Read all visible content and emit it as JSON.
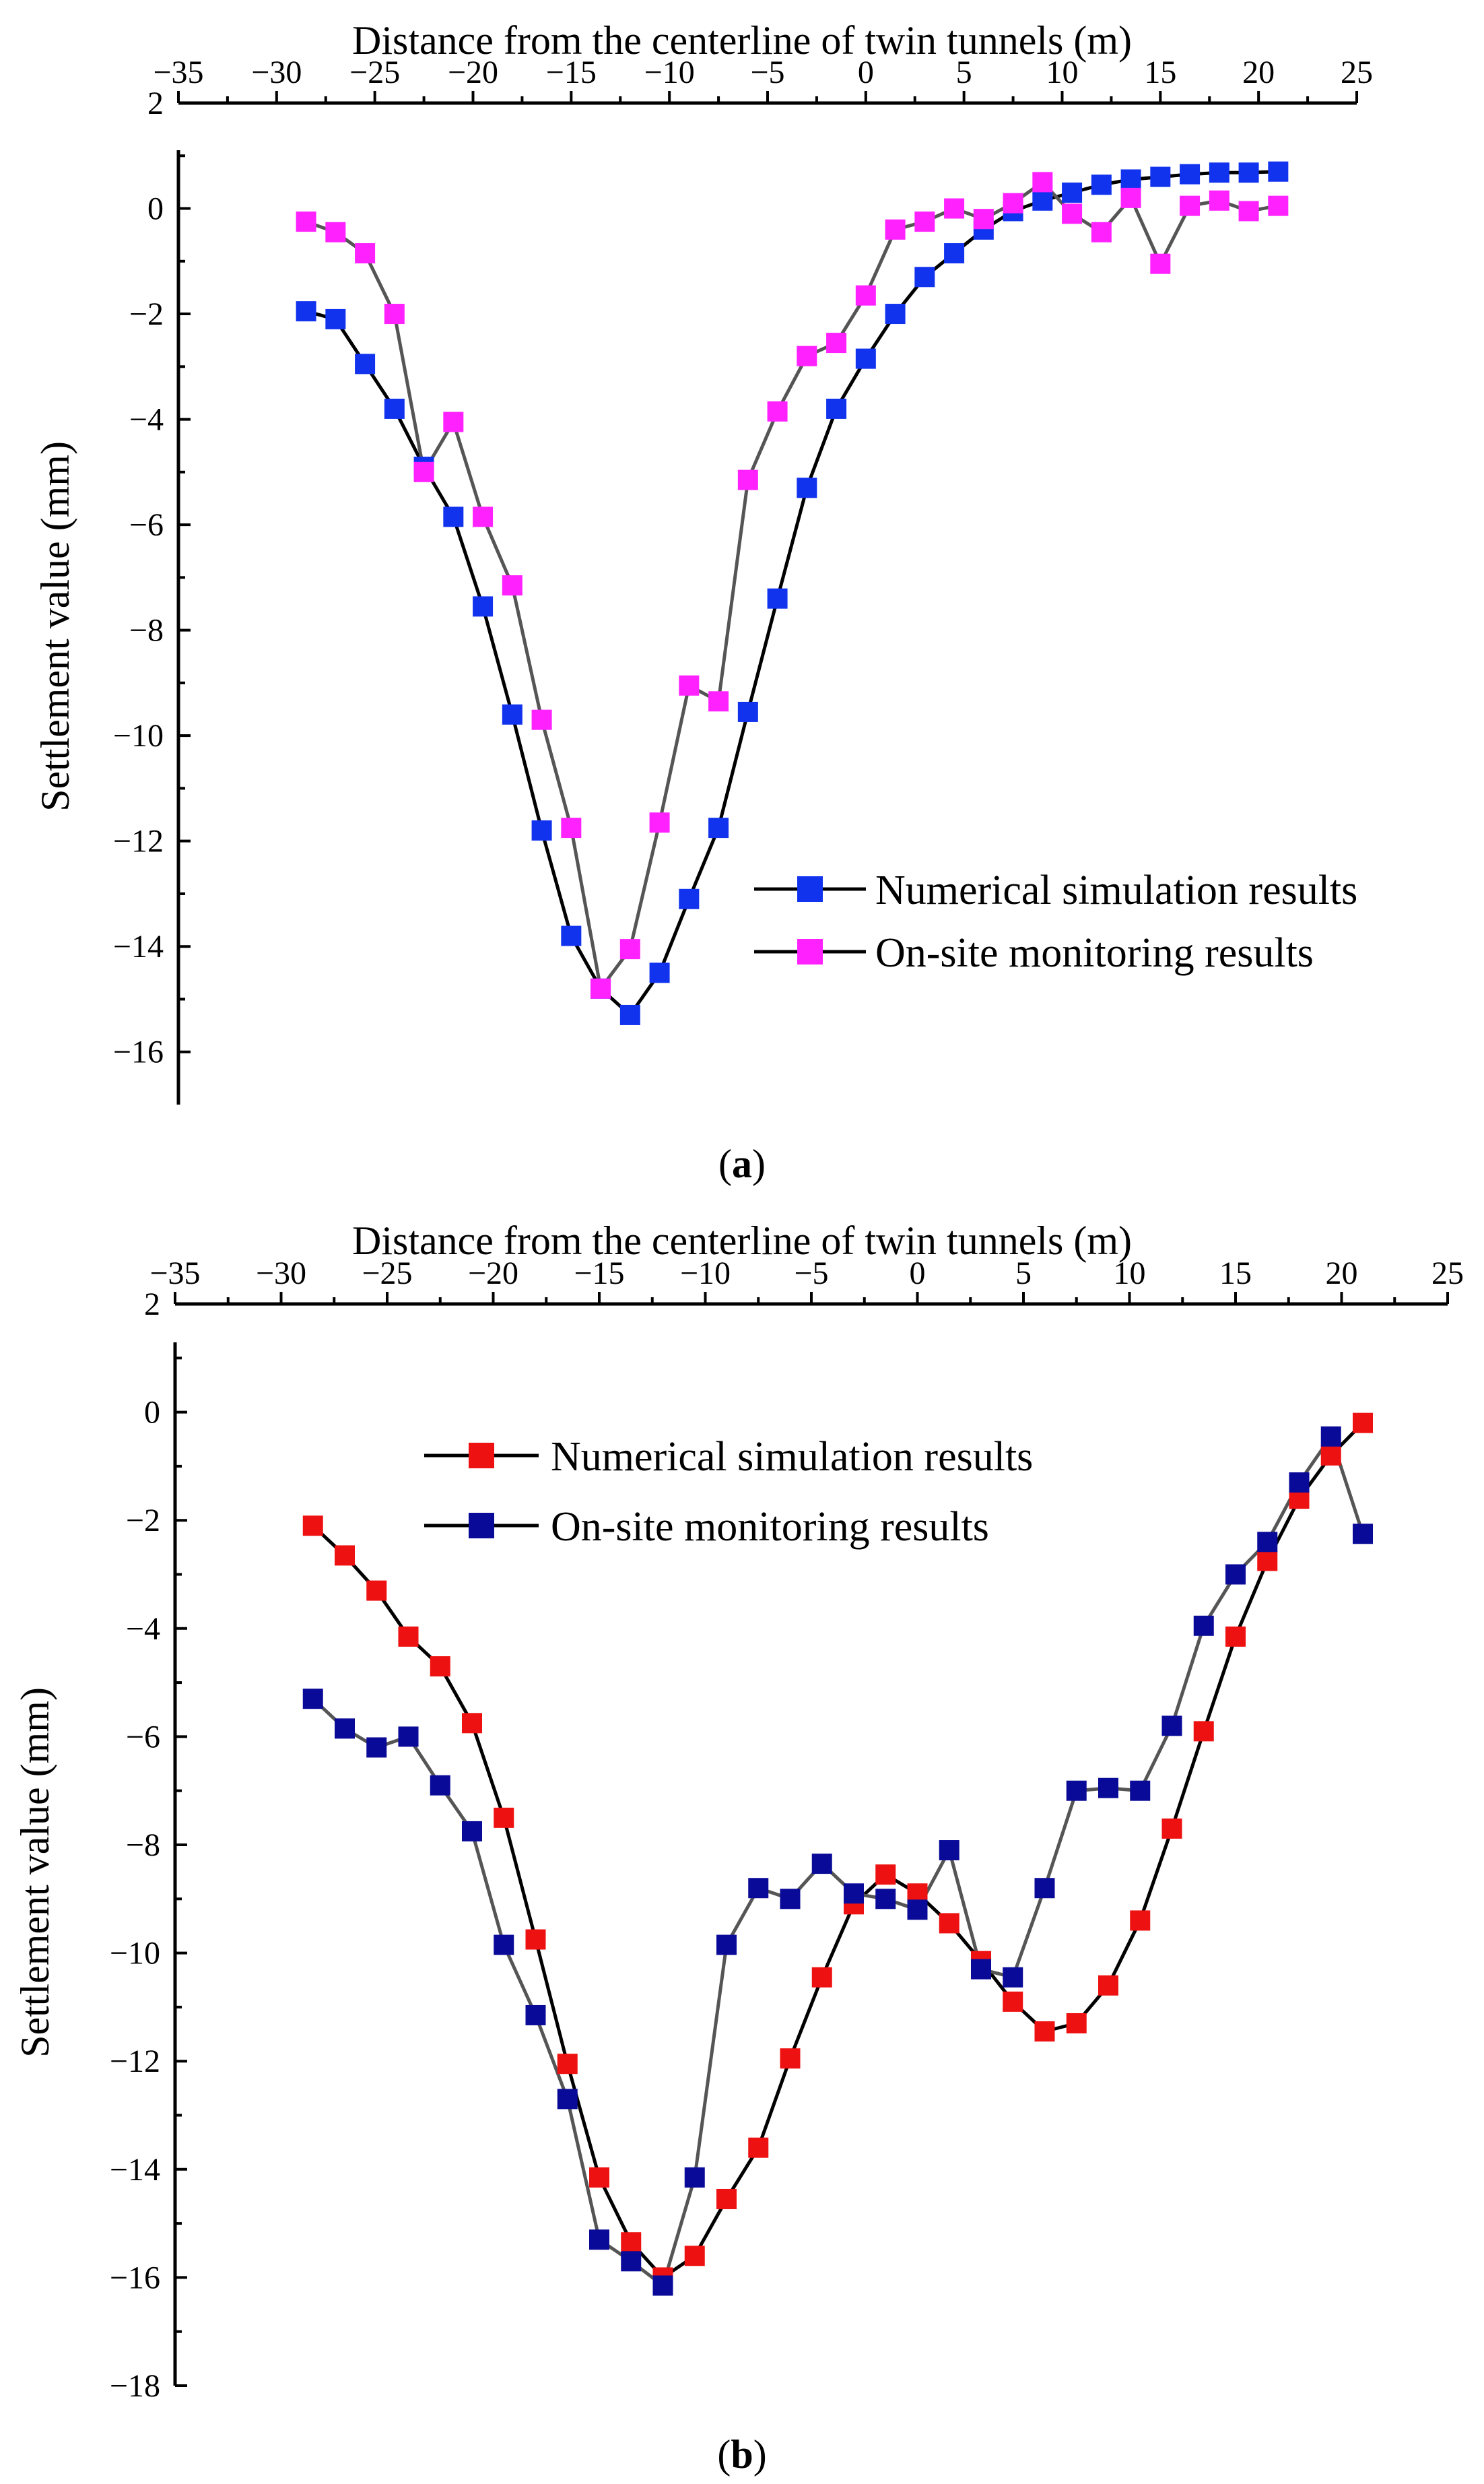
{
  "chart_data": [
    {
      "type": "line",
      "caption_letter": "a",
      "xlabel": "Distance from the centerline of twin tunnels (m)",
      "ylabel": "Settlement value (mm)",
      "xlim": [
        -35,
        25
      ],
      "ylim": [
        -17,
        2
      ],
      "xticks": [
        -35,
        -30,
        -25,
        -20,
        -15,
        -10,
        -5,
        0,
        5,
        10,
        15,
        20,
        25
      ],
      "yticks": [
        2,
        0,
        -2,
        -4,
        -6,
        -8,
        -10,
        -12,
        -14,
        -16
      ],
      "legend_position": "lower-right",
      "series": [
        {
          "name": "Numerical simulation results",
          "marker_color": "#1133ee",
          "line_color": "#000000",
          "x": [
            -28.5,
            -27,
            -25.5,
            -24,
            -22.5,
            -21,
            -19.5,
            -18,
            -16.5,
            -15,
            -13.5,
            -12,
            -10.5,
            -9,
            -7.5,
            -6,
            -4.5,
            -3,
            -1.5,
            0,
            1.5,
            3,
            4.5,
            6,
            7.5,
            9,
            10.5,
            12,
            13.5,
            15,
            16.5,
            18,
            19.5,
            21
          ],
          "y": [
            -1.95,
            -2.1,
            -2.95,
            -3.8,
            -4.9,
            -5.85,
            -7.55,
            -9.6,
            -11.8,
            -13.8,
            -14.8,
            -15.3,
            -14.5,
            -13.1,
            -11.75,
            -9.55,
            -7.4,
            -5.3,
            -3.8,
            -2.85,
            -2.0,
            -1.3,
            -0.85,
            -0.4,
            -0.05,
            0.15,
            0.3,
            0.45,
            0.55,
            0.6,
            0.65,
            0.68,
            0.68,
            0.7
          ]
        },
        {
          "name": "On-site monitoring results",
          "marker_color": "#ff22ff",
          "line_color": "#555555",
          "x": [
            -28.5,
            -27,
            -25.5,
            -24,
            -22.5,
            -21,
            -19.5,
            -18,
            -16.5,
            -15,
            -13.5,
            -12,
            -10.5,
            -9,
            -7.5,
            -6,
            -4.5,
            -3,
            -1.5,
            0,
            1.5,
            3,
            4.5,
            6,
            7.5,
            9,
            10.5,
            12,
            13.5,
            15,
            16.5,
            18,
            19.5,
            21
          ],
          "y": [
            -0.25,
            -0.45,
            -0.85,
            -2.0,
            -5.0,
            -4.05,
            -5.85,
            -7.15,
            -9.7,
            -11.75,
            -14.8,
            -14.05,
            -11.65,
            -9.05,
            -9.35,
            -5.15,
            -3.85,
            -2.8,
            -2.55,
            -1.65,
            -0.4,
            -0.25,
            0.0,
            -0.2,
            0.1,
            0.5,
            -0.1,
            -0.45,
            0.2,
            -1.05,
            0.05,
            0.15,
            -0.05,
            0.05
          ]
        }
      ]
    },
    {
      "type": "line",
      "caption_letter": "b",
      "xlabel": "Distance from the centerline of twin tunnels (m)",
      "ylabel": "Settlement value (mm)",
      "xlim": [
        -35,
        25
      ],
      "ylim": [
        -18,
        2
      ],
      "xticks": [
        -35,
        -30,
        -25,
        -20,
        -15,
        -10,
        -5,
        0,
        5,
        10,
        15,
        20,
        25
      ],
      "yticks": [
        2,
        0,
        -2,
        -4,
        -6,
        -8,
        -10,
        -12,
        -14,
        -16,
        -18
      ],
      "legend_position": "top-center",
      "series": [
        {
          "name": "Numerical simulation results",
          "marker_color": "#ee1111",
          "line_color": "#000000",
          "x": [
            -28.5,
            -27,
            -25.5,
            -24,
            -22.5,
            -21,
            -19.5,
            -18,
            -16.5,
            -15,
            -13.5,
            -12,
            -10.5,
            -9,
            -7.5,
            -6,
            -4.5,
            -3,
            -1.5,
            0,
            1.5,
            3,
            4.5,
            6,
            7.5,
            9,
            10.5,
            12,
            13.5,
            15,
            16.5,
            18,
            19.5,
            21
          ],
          "y": [
            -2.1,
            -2.65,
            -3.3,
            -4.15,
            -4.7,
            -5.75,
            -7.5,
            -9.75,
            -12.05,
            -14.15,
            -15.35,
            -16.0,
            -15.6,
            -14.55,
            -13.6,
            -11.95,
            -10.45,
            -9.1,
            -8.55,
            -8.9,
            -9.45,
            -10.15,
            -10.9,
            -11.45,
            -11.3,
            -10.6,
            -9.4,
            -7.7,
            -5.9,
            -4.15,
            -2.75,
            -1.6,
            -0.8,
            -0.2
          ]
        },
        {
          "name": "On-site monitoring results",
          "marker_color": "#0a0a99",
          "line_color": "#555555",
          "x": [
            -28.5,
            -27,
            -25.5,
            -24,
            -22.5,
            -21,
            -19.5,
            -18,
            -16.5,
            -15,
            -13.5,
            -12,
            -10.5,
            -9,
            -7.5,
            -6,
            -4.5,
            -3,
            -1.5,
            0,
            1.5,
            3,
            4.5,
            6,
            7.5,
            9,
            10.5,
            12,
            13.5,
            15,
            16.5,
            18,
            19.5,
            21
          ],
          "y": [
            -5.3,
            -5.85,
            -6.2,
            -6.0,
            -6.9,
            -7.75,
            -9.85,
            -11.15,
            -12.7,
            -15.3,
            -15.7,
            -16.15,
            -14.15,
            -9.85,
            -8.8,
            -9.0,
            -8.35,
            -8.9,
            -9.0,
            -9.2,
            -8.1,
            -10.3,
            -10.45,
            -8.8,
            -7.0,
            -6.95,
            -7.0,
            -5.8,
            -3.95,
            -3.0,
            -2.4,
            -1.3,
            -0.45,
            -2.25
          ]
        }
      ]
    }
  ]
}
